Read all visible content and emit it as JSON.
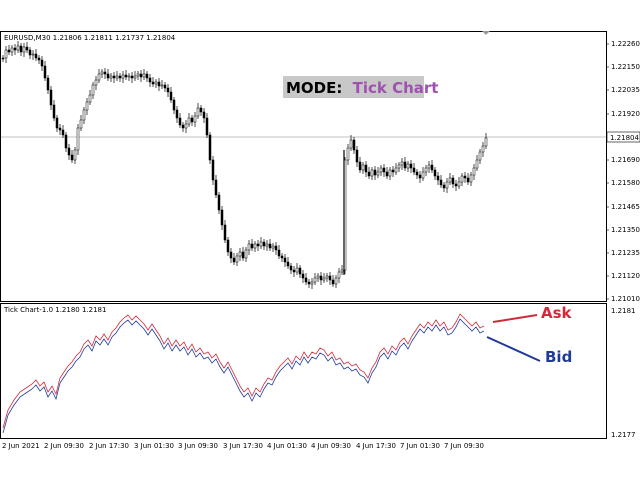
{
  "main_chart": {
    "info_line": "EURUSD,M30  1.21806 1.21811 1.21737 1.21804",
    "price_ticks": [
      "1.22260",
      "1.22150",
      "1.22035",
      "1.21920",
      "1.21804",
      "1.21690",
      "1.21580",
      "1.21465",
      "1.21350",
      "1.21235",
      "1.21120",
      "1.21010"
    ],
    "current_price": "1.21804",
    "mode_prefix": "MODE:",
    "mode_value": "Tick Chart"
  },
  "sub_chart": {
    "info_line": "Tick Chart-1.0 1.2180 1.2181",
    "ticks": [
      "1.2181",
      "1.2177"
    ],
    "ask_label": "Ask",
    "bid_label": "Bid"
  },
  "time_ticks": [
    "2 Jun 2021",
    "2 Jun 09:30",
    "2 Jun 17:30",
    "3 Jun 01:30",
    "3 Jun 09:30",
    "3 Jun 17:30",
    "4 Jun 01:30",
    "4 Jun 09:30",
    "4 Jun 17:30",
    "7 Jun 01:30",
    "7 Jun 09:30"
  ],
  "colors": {
    "background": "#ffffff",
    "candle": "#000000",
    "grid_line": "#c0c0c0",
    "ask": "#d02a3a",
    "bid": "#1f3a9a",
    "mode_bg": "#c8c8c8",
    "mode_value": "#a050b0"
  },
  "chart_data": {
    "type": "line",
    "series": [
      {
        "name": "Ask",
        "values": [
          1.21772,
          1.21776,
          1.21783,
          1.21786,
          1.2178,
          1.2179,
          1.21795,
          1.218,
          1.21806,
          1.21812,
          1.21805,
          1.218,
          1.21792,
          1.21797,
          1.2179,
          1.21782,
          1.21776,
          1.21784,
          1.21792,
          1.21786,
          1.21796,
          1.21802,
          1.2181,
          1.21806,
          1.21812,
          1.21806
        ]
      },
      {
        "name": "Bid",
        "values": [
          1.21771,
          1.21775,
          1.21782,
          1.21785,
          1.21779,
          1.21789,
          1.21794,
          1.21799,
          1.21805,
          1.21811,
          1.21804,
          1.21799,
          1.21791,
          1.21796,
          1.21789,
          1.21781,
          1.21775,
          1.21783,
          1.21791,
          1.21785,
          1.21795,
          1.21801,
          1.21809,
          1.21805,
          1.21808,
          1.21804
        ]
      }
    ]
  }
}
